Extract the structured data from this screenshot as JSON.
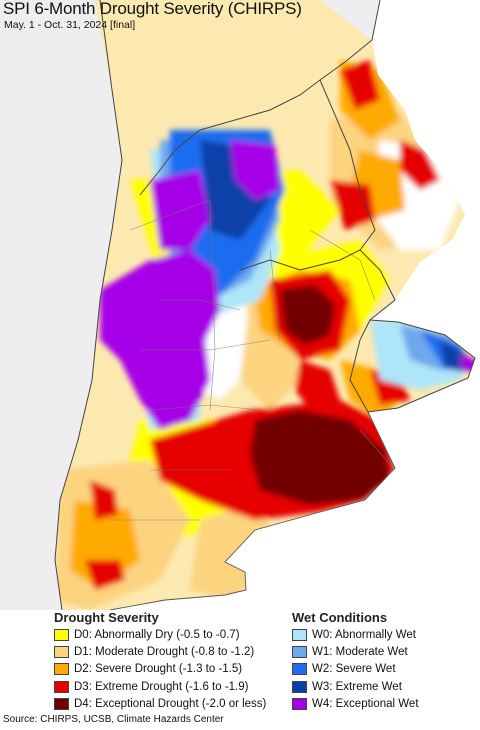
{
  "map": {
    "title": "SPI 6-Month Drought Severity (CHIRPS)",
    "subtitle": "May. 1 - Oct. 31, 2024 [final]"
  },
  "legend": {
    "drought": {
      "heading": "Drought Severity",
      "items": [
        {
          "label": "D0: Abnormally Dry (-0.5 to -0.7)",
          "color": "#ffff00"
        },
        {
          "label": "D1: Moderate Drought (-0.8 to -1.2)",
          "color": "#fcd37f"
        },
        {
          "label": "D2: Severe Drought (-1.3 to -1.5)",
          "color": "#ffaa00"
        },
        {
          "label": "D3: Extreme Drought (-1.6 to -1.9)",
          "color": "#e60000"
        },
        {
          "label": "D4: Exceptional Drought (-2.0 or less)",
          "color": "#730000"
        }
      ]
    },
    "wet": {
      "heading": "Wet Conditions",
      "items": [
        {
          "label": "W0: Abnormally Wet",
          "color": "#aee5f8"
        },
        {
          "label": "W1: Moderate Wet",
          "color": "#6ea7ee"
        },
        {
          "label": "W2: Severe Wet",
          "color": "#1e6cf0"
        },
        {
          "label": "W3: Extreme Wet",
          "color": "#0b3fa8"
        },
        {
          "label": "W4: Exceptional Wet",
          "color": "#a600e8"
        }
      ]
    }
  },
  "source": "Source: CHIRPS, UCSB, Climate Hazards Center"
}
